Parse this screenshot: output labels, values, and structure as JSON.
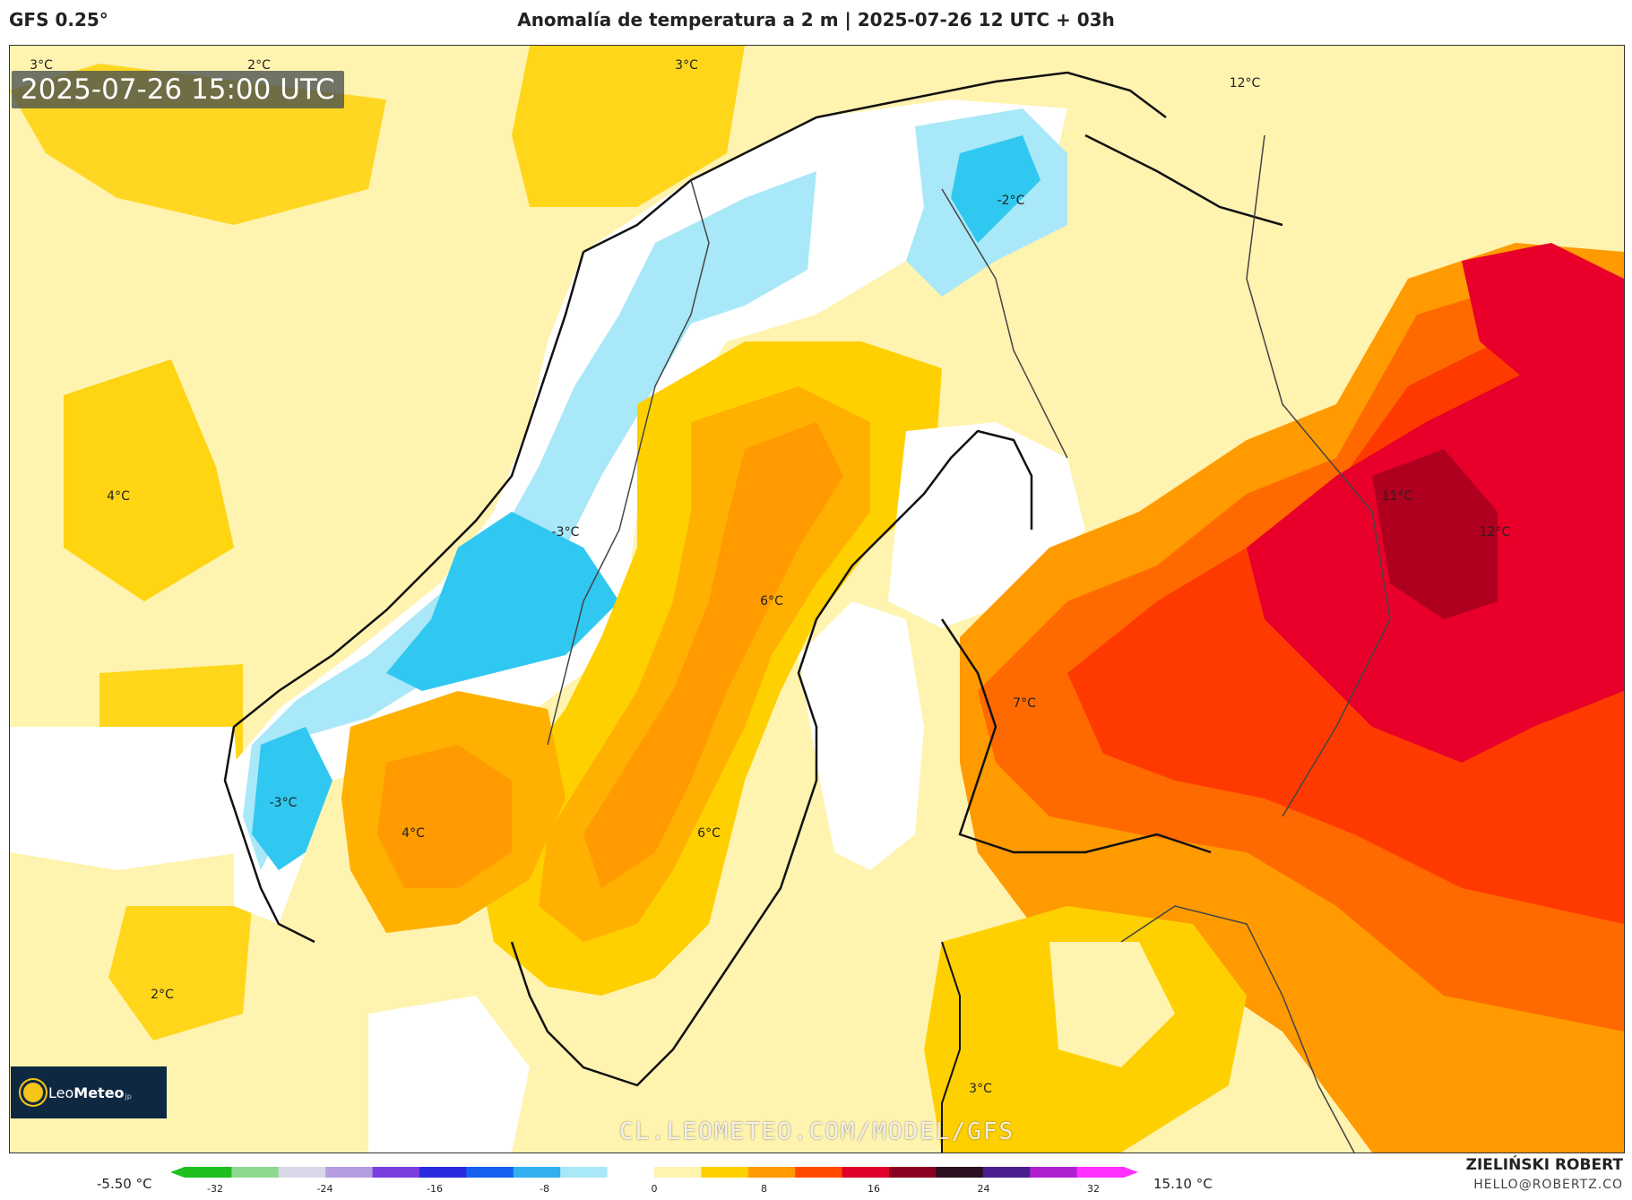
{
  "header": {
    "model": "GFS 0.25°",
    "title": "Anomalía de temperatura a 2 m | 2025-07-26 12 UTC + 03h"
  },
  "map": {
    "valid_time": "2025-07-26 15:00 UTC",
    "watermark": "CL.LEOMETEO.COM/MODEL/GFS",
    "labels": [
      {
        "id": "a",
        "text": "3°C"
      },
      {
        "id": "b",
        "text": "2°C"
      },
      {
        "id": "c",
        "text": "3°C"
      },
      {
        "id": "d",
        "text": "12°C"
      },
      {
        "id": "e",
        "text": "-2°C"
      },
      {
        "id": "f",
        "text": "4°C"
      },
      {
        "id": "g",
        "text": "-3°C"
      },
      {
        "id": "h",
        "text": "11°C"
      },
      {
        "id": "i",
        "text": "12°C"
      },
      {
        "id": "j",
        "text": "6°C"
      },
      {
        "id": "k",
        "text": "7°C"
      },
      {
        "id": "l",
        "text": "-3°C"
      },
      {
        "id": "m",
        "text": "4°C"
      },
      {
        "id": "n",
        "text": "6°C"
      },
      {
        "id": "o",
        "text": "2°C"
      },
      {
        "id": "p",
        "text": "3°C"
      }
    ]
  },
  "logo": {
    "leo": "Leo",
    "meteo": "Meteo",
    "suffix": "jp"
  },
  "colorbar": {
    "min_label": "-5.50 °C",
    "max_label": "15.10 °C",
    "ticks": [
      "-32",
      "-24",
      "-16",
      "-8",
      "0",
      "8",
      "16",
      "24",
      "32"
    ],
    "colors": [
      "#1fbf1f",
      "#8fd98f",
      "#d8d8e8",
      "#b59de0",
      "#7b3fe0",
      "#2a2ae0",
      "#1560f0",
      "#30b0f0",
      "#a8e8f8",
      "#ffffff",
      "#fff3b0",
      "#ffd000",
      "#ff9a00",
      "#ff4a00",
      "#e0002a",
      "#8b0020",
      "#2a1020",
      "#4a2090",
      "#b020d0",
      "#ff30ff"
    ]
  },
  "credits": {
    "author": "ZIELIŃSKI ROBERT",
    "email": "HELLO@ROBERTZ.CO"
  }
}
